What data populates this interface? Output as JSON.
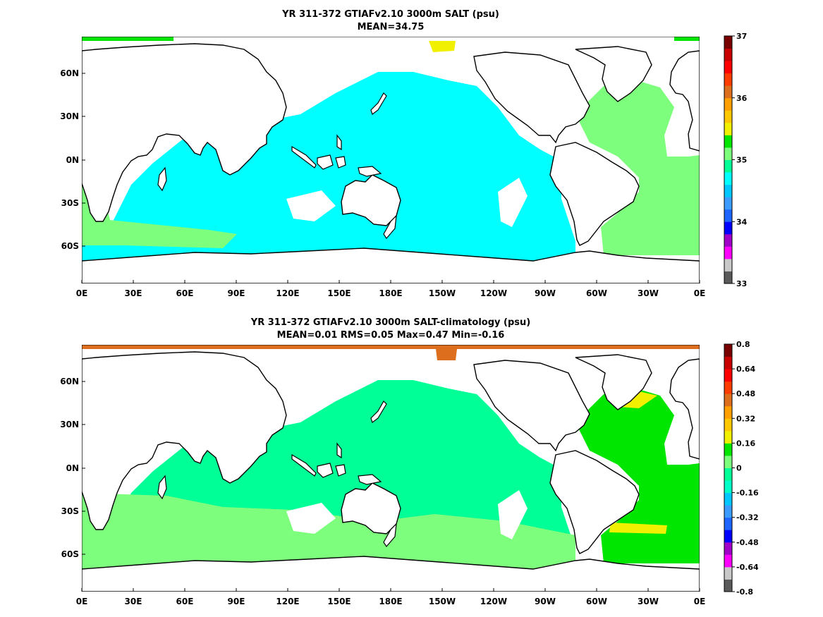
{
  "panels": [
    {
      "title": "YR 311-372 GTIAFv2.10 3000m SALT (psu)",
      "subtitle": "MEAN=34.75",
      "colorbar": {
        "colors": [
          "#5a5a5a",
          "#c8c8c8",
          "#ff00ff",
          "#a000c8",
          "#0000ff",
          "#1e64ff",
          "#3c9bff",
          "#00c8ff",
          "#00ffff",
          "#00ff96",
          "#7dff7d",
          "#00e600",
          "#f0f000",
          "#ffc800",
          "#ffa000",
          "#dc6e1e",
          "#ff3c00",
          "#ff0000",
          "#c80000",
          "#780000"
        ],
        "tick_labels": [
          "33",
          "34",
          "35",
          "36",
          "37"
        ]
      }
    },
    {
      "title": "YR 311-372 GTIAFv2.10 3000m SALT-climatology (psu)",
      "subtitle": "MEAN=0.01   RMS=0.05   Max=0.47   Min=-0.16",
      "colorbar": {
        "colors": [
          "#5a5a5a",
          "#c8c8c8",
          "#ff00ff",
          "#a000c8",
          "#0000ff",
          "#1e64ff",
          "#3c9bff",
          "#00c8ff",
          "#00ffc8",
          "#00ff96",
          "#7dff7d",
          "#00e600",
          "#f0f000",
          "#ffc800",
          "#ffa000",
          "#dc6e1e",
          "#ff3c00",
          "#ff0000",
          "#c80000",
          "#780000"
        ],
        "tick_labels": [
          "0.8",
          "0.64",
          "0.48",
          "0.32",
          "0.16",
          "0",
          "-0.16",
          "-0.32",
          "-0.48",
          "-0.64",
          "-0.8"
        ]
      }
    }
  ],
  "axes": {
    "lon_labels": [
      "0E",
      "30E",
      "60E",
      "90E",
      "120E",
      "150E",
      "180E",
      "150W",
      "120W",
      "90W",
      "60W",
      "30W",
      "0E"
    ],
    "lat_labels": [
      "60N",
      "30N",
      "0N",
      "30S",
      "60S"
    ]
  }
}
